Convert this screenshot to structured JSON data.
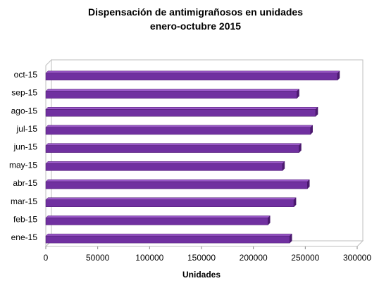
{
  "chart_data": {
    "type": "bar",
    "orientation": "horizontal",
    "title": "Dispensación de antimigrañosos en unidades",
    "subtitle": "enero-octubre 2015",
    "xlabel": "Unidades",
    "ylabel": "",
    "categories": [
      "ene-15",
      "feb-15",
      "mar-15",
      "abr-15",
      "may-15",
      "jun-15",
      "jul-15",
      "ago-15",
      "sep-15",
      "oct-15"
    ],
    "values": [
      235000,
      214000,
      239000,
      252000,
      228000,
      244000,
      255000,
      260000,
      242000,
      281000
    ],
    "xlim": [
      0,
      300000
    ],
    "xticks": [
      "0",
      "50000",
      "100000",
      "150000",
      "200000",
      "250000",
      "300000"
    ],
    "grid": false,
    "legend": "none",
    "bar_color": "#7030A0",
    "bar_edge_color": "#4B1A6E"
  }
}
